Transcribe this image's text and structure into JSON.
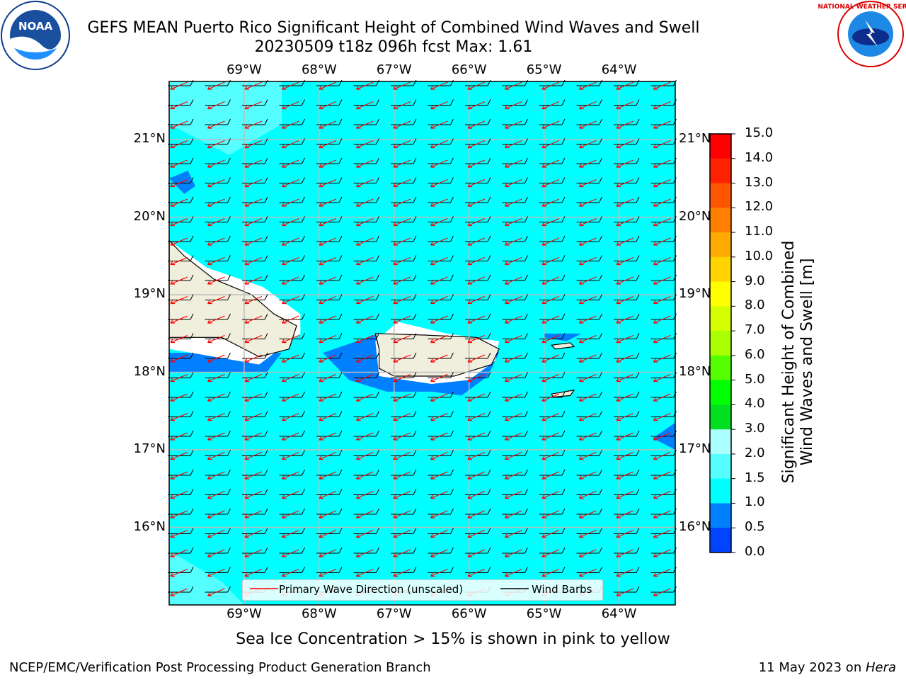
{
  "header": {
    "title_line1": "GEFS MEAN Puerto Rico Significant Height of Combined Wind Waves and Swell",
    "title_line2": "20230509 t18z 096h fcst   Max: 1.61"
  },
  "logos": {
    "left": "noaa-logo",
    "left_text": "NOAA",
    "right": "nws-logo",
    "right_text": "NATIONAL WEATHER SERVICE"
  },
  "map": {
    "lon_labels": [
      "69°W",
      "68°W",
      "67°W",
      "66°W",
      "65°W",
      "64°W"
    ],
    "lat_labels": [
      "21°N",
      "20°N",
      "19°N",
      "18°N",
      "17°N",
      "16°N"
    ],
    "lon_range": [
      -70.0,
      -63.25
    ],
    "lat_range": [
      15.0,
      21.75
    ],
    "ocean_color": "#00ffff",
    "land_color": "#f0eedc"
  },
  "legend": {
    "wave_label": "Primary Wave Direction (unscaled)",
    "barb_label": "Wind Barbs"
  },
  "colorbar": {
    "ticks": [
      "15.0",
      "14.0",
      "13.0",
      "12.0",
      "11.0",
      "10.0",
      "9.0",
      "8.0",
      "7.0",
      "6.0",
      "5.0",
      "4.0",
      "3.0",
      "2.0",
      "1.5",
      "1.0",
      "0.5",
      "0.0"
    ],
    "colors": [
      "#ff0000",
      "#ff2200",
      "#ff5500",
      "#ff7f00",
      "#ffaa00",
      "#ffd400",
      "#ffff00",
      "#d4ff00",
      "#aaff00",
      "#55ff00",
      "#00ff00",
      "#00e020",
      "#54ff7f",
      "#aaffff",
      "#55ffff",
      "#00ffff",
      "#007fff",
      "#0044ff",
      "#0000ff"
    ],
    "label_line1": "Significant Height of Combined",
    "label_line2": "Wind Waves and Swell [m]"
  },
  "notes": {
    "sea_ice": "Sea Ice Concentration > 15% is shown in pink to yellow"
  },
  "footer": {
    "left": "NCEP/EMC/Verification Post Processing Product Generation Branch",
    "date": "11 May 2023 on ",
    "host": "Hera"
  }
}
